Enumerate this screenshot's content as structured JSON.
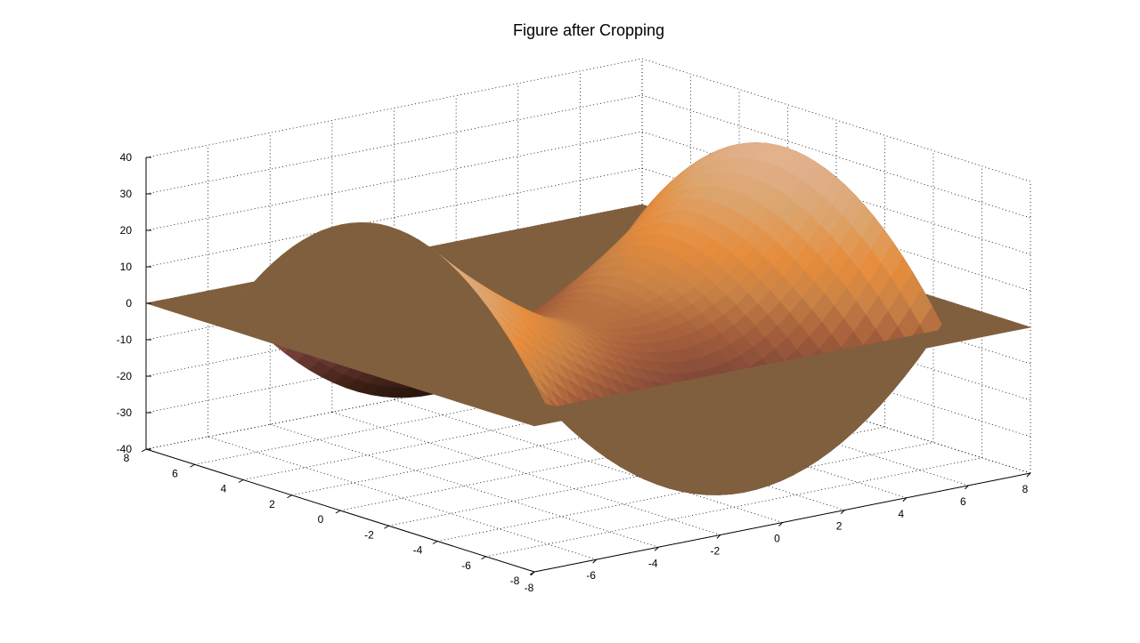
{
  "chart_data": {
    "type": "surface",
    "title": "Figure after Cropping",
    "x_ticks": [
      "-8",
      "-6",
      "-4",
      "-2",
      "0",
      "2",
      "4",
      "6",
      "8"
    ],
    "y_ticks": [
      "-8",
      "-6",
      "-4",
      "-2",
      "0",
      "2",
      "4",
      "6",
      "8"
    ],
    "z_ticks": [
      "-40",
      "-30",
      "-20",
      "-10",
      "0",
      "10",
      "20",
      "30",
      "40"
    ],
    "xlim": [
      -8,
      8
    ],
    "ylim": [
      -8,
      8
    ],
    "zlim": [
      -40,
      40
    ],
    "grid": true,
    "colormap": "copper-like (brown / orange / tan)",
    "surface": {
      "x_range": [
        -6.5,
        6.5
      ],
      "y_range": [
        -6.5,
        6.5
      ],
      "outer_flat_value": 0,
      "approx_z_extremes": [
        -38,
        38
      ]
    }
  }
}
